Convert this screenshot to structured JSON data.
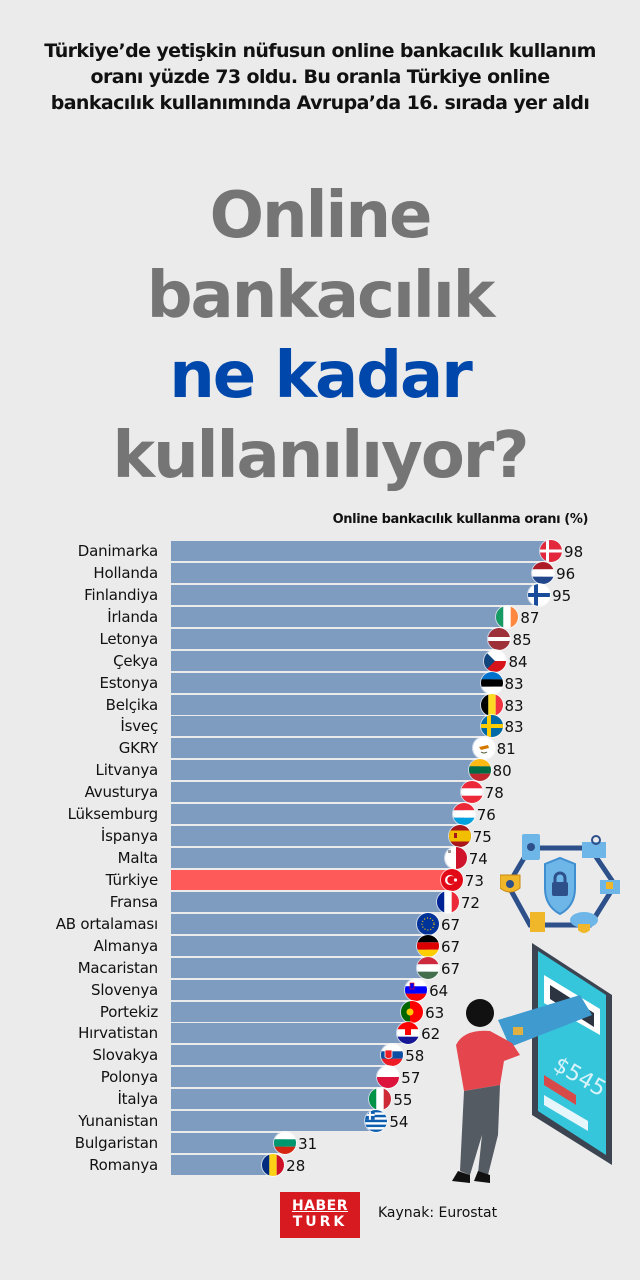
{
  "subtitle": "Türkiye’de yetişkin nüfusun online bankacılık kullanım oranı yüzde 73 oldu. Bu oranla Türkiye online bankacılık kullanımında Avrupa’da 16. sırada yer aldı",
  "headline": {
    "line1": "Online",
    "line2": "bankacılık",
    "line3": "ne kadar",
    "line4": "kullanılıyor?"
  },
  "colors": {
    "bar": "#7e9bc0",
    "highlight_bar": "#ff5a5a",
    "accent": "#0047ab",
    "headline_gray": "#757575",
    "background": "#ebebec",
    "logo_red": "#d71920"
  },
  "chart_data": {
    "type": "bar",
    "orientation": "horizontal",
    "title": "Online bankacılık kullanma oranı (%)",
    "xlabel": "Online bankacılık kullanma oranı (%)",
    "ylabel": "",
    "xlim": [
      0,
      100
    ],
    "grid": false,
    "highlight": "Türkiye",
    "categories": [
      "Danimarka",
      "Hollanda",
      "Finlandiya",
      "İrlanda",
      "Letonya",
      "Çekya",
      "Estonya",
      "Belçika",
      "İsveç",
      "GKRY",
      "Litvanya",
      "Avusturya",
      "Lüksemburg",
      "İspanya",
      "Malta",
      "Türkiye",
      "Fransa",
      "AB ortalaması",
      "Almanya",
      "Macaristan",
      "Slovenya",
      "Portekiz",
      "Hırvatistan",
      "Slovakya",
      "Polonya",
      "İtalya",
      "Yunanistan",
      "Bulgaristan",
      "Romanya"
    ],
    "values": [
      98,
      96,
      95,
      87,
      85,
      84,
      83,
      83,
      83,
      81,
      80,
      78,
      76,
      75,
      74,
      73,
      72,
      67,
      67,
      67,
      64,
      63,
      62,
      58,
      57,
      55,
      54,
      31,
      28
    ],
    "rows": [
      {
        "label": "Danimarka",
        "value": 98,
        "flag": "dk"
      },
      {
        "label": "Hollanda",
        "value": 96,
        "flag": "nl"
      },
      {
        "label": "Finlandiya",
        "value": 95,
        "flag": "fi"
      },
      {
        "label": "İrlanda",
        "value": 87,
        "flag": "ie"
      },
      {
        "label": "Letonya",
        "value": 85,
        "flag": "lv"
      },
      {
        "label": "Çekya",
        "value": 84,
        "flag": "cz"
      },
      {
        "label": "Estonya",
        "value": 83,
        "flag": "ee"
      },
      {
        "label": "Belçika",
        "value": 83,
        "flag": "be"
      },
      {
        "label": "İsveç",
        "value": 83,
        "flag": "se"
      },
      {
        "label": "GKRY",
        "value": 81,
        "flag": "cy"
      },
      {
        "label": "Litvanya",
        "value": 80,
        "flag": "lt"
      },
      {
        "label": "Avusturya",
        "value": 78,
        "flag": "at"
      },
      {
        "label": "Lüksemburg",
        "value": 76,
        "flag": "lu"
      },
      {
        "label": "İspanya",
        "value": 75,
        "flag": "es"
      },
      {
        "label": "Malta",
        "value": 74,
        "flag": "mt"
      },
      {
        "label": "Türkiye",
        "value": 73,
        "flag": "tr",
        "highlight": true
      },
      {
        "label": "Fransa",
        "value": 72,
        "flag": "fr"
      },
      {
        "label": "AB ortalaması",
        "value": 67,
        "flag": "eu"
      },
      {
        "label": "Almanya",
        "value": 67,
        "flag": "de"
      },
      {
        "label": "Macaristan",
        "value": 67,
        "flag": "hu"
      },
      {
        "label": "Slovenya",
        "value": 64,
        "flag": "si"
      },
      {
        "label": "Portekiz",
        "value": 63,
        "flag": "pt"
      },
      {
        "label": "Hırvatistan",
        "value": 62,
        "flag": "hr"
      },
      {
        "label": "Slovakya",
        "value": 58,
        "flag": "sk"
      },
      {
        "label": "Polonya",
        "value": 57,
        "flag": "pl"
      },
      {
        "label": "İtalya",
        "value": 55,
        "flag": "it"
      },
      {
        "label": "Yunanistan",
        "value": 54,
        "flag": "gr"
      },
      {
        "label": "Bulgaristan",
        "value": 31,
        "flag": "bg"
      },
      {
        "label": "Romanya",
        "value": 28,
        "flag": "ro"
      }
    ]
  },
  "illustrations": {
    "security": "security-network-icon",
    "phone": "phone-card-payment-illustration",
    "phone_amount": "$545"
  },
  "footer": {
    "logo_line1": "HABER",
    "logo_line2": "TURK",
    "source": "Kaynak: Eurostat"
  }
}
